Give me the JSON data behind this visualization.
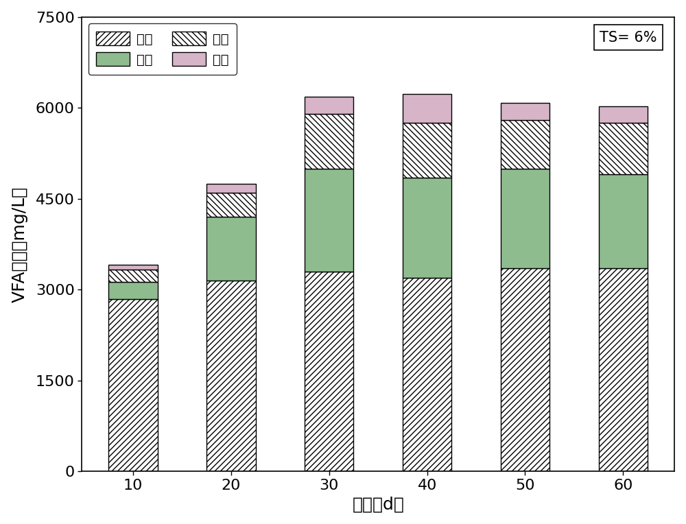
{
  "categories": [
    10,
    20,
    30,
    40,
    50,
    60
  ],
  "acetic": [
    2850,
    3150,
    3300,
    3200,
    3350,
    3350
  ],
  "propionic": [
    280,
    1050,
    1700,
    1650,
    1650,
    1550
  ],
  "butyric": [
    200,
    400,
    900,
    900,
    800,
    850
  ],
  "valeric": [
    80,
    150,
    280,
    480,
    280,
    280
  ],
  "ylabel": "VFA浓度（mg/L）",
  "xlabel": "时间（d）",
  "annotation": "TS= 6%",
  "ylim": [
    0,
    7500
  ],
  "yticks": [
    0,
    1500,
    3000,
    4500,
    6000,
    7500
  ],
  "legend_labels": [
    "乙酸",
    "丙酸",
    "丁酸",
    "戊酸"
  ],
  "acetic_facecolor": "#ffffff",
  "propionic_facecolor": "#8fbc8f",
  "butyric_facecolor": "#ffffff",
  "valeric_facecolor": "#d8b4c8",
  "edge_color": "#000000"
}
